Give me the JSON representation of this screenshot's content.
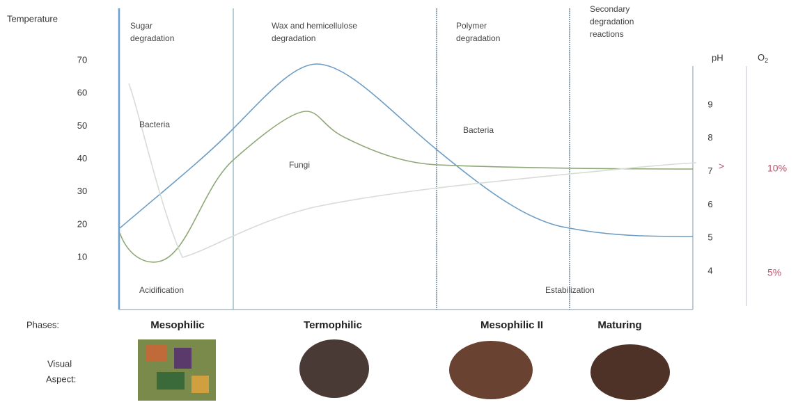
{
  "axes": {
    "left_title": "Temperature",
    "left_ticks": [
      "70",
      "60",
      "50",
      "40",
      "30",
      "20",
      "10"
    ],
    "ph_title": "pH",
    "ph_ticks": [
      "9",
      "8",
      "7",
      "6",
      "5",
      "4"
    ],
    "o2_title": "O",
    "o2_sub": "2",
    "o2_ticks": [
      "10%",
      "5%"
    ],
    "arrow": ">"
  },
  "stages": [
    [
      "Sugar",
      "degradation"
    ],
    [
      "Wax and hemicellulose",
      "degradation"
    ],
    [
      "Polymer",
      "degradation"
    ],
    [
      "Secondary",
      "degradation",
      "reactions"
    ]
  ],
  "labels": {
    "bacteria1": "Bacteria",
    "fungi": "Fungi",
    "bacteria2": "Bacteria",
    "acidification": "Acidification",
    "stabilization": "Estabilization"
  },
  "phases": {
    "title": "Phases:",
    "names": [
      "Mesophilic",
      "Termophilic",
      "Mesophilic II",
      "Maturing"
    ]
  },
  "visual": [
    "Visual",
    "Aspect:"
  ]
}
